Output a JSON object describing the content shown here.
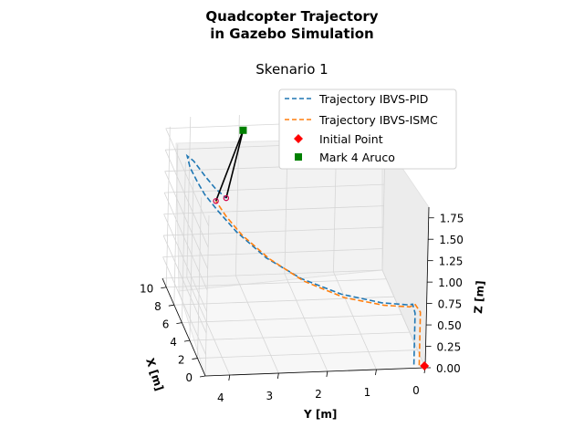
{
  "figure": {
    "title_line1": "Quadcopter Trajectory",
    "title_line2": "in Gazebo Simulation",
    "subtitle": "Skenario 1"
  },
  "chart_data": {
    "type": "line",
    "projection": "3d",
    "title": "Quadcopter Trajectory in Gazebo Simulation",
    "subtitle": "Skenario 1",
    "xlabel": "X [m]",
    "ylabel": "Y [m]",
    "zlabel": "Z [m]",
    "xlim": [
      0,
      11
    ],
    "ylim": [
      0,
      4.5
    ],
    "zlim": [
      0,
      1.875
    ],
    "x_ticks": [
      "0",
      "2",
      "4",
      "6",
      "8",
      "10"
    ],
    "y_ticks": [
      "0",
      "1",
      "2",
      "3",
      "4"
    ],
    "z_ticks": [
      "0.00",
      "0.25",
      "0.50",
      "0.75",
      "1.00",
      "1.25",
      "1.50",
      "1.75"
    ],
    "legend_position": "upper-right",
    "series": [
      {
        "name": "Trajectory IBVS-PID",
        "style": "dashed",
        "color": "#1f77b4",
        "points": [
          [
            0.4,
            0.2,
            0.0
          ],
          [
            0.4,
            0.2,
            0.6
          ],
          [
            0.45,
            0.25,
            0.7
          ],
          [
            0.6,
            0.35,
            0.68
          ],
          [
            1.5,
            0.8,
            0.62
          ],
          [
            3.0,
            1.5,
            0.58
          ],
          [
            4.5,
            2.2,
            0.62
          ],
          [
            6.0,
            2.8,
            0.72
          ],
          [
            7.5,
            3.3,
            0.88
          ],
          [
            8.6,
            3.6,
            1.02
          ],
          [
            9.5,
            3.8,
            1.12
          ],
          [
            10.2,
            3.9,
            1.2
          ],
          [
            10.8,
            4.0,
            1.3
          ],
          [
            11.0,
            4.05,
            1.42
          ],
          [
            10.6,
            3.95,
            1.4
          ],
          [
            9.9,
            3.75,
            1.28
          ],
          [
            9.4,
            3.6,
            1.2
          ],
          [
            9.0,
            3.4,
            1.12
          ]
        ]
      },
      {
        "name": "Trajectory IBVS-ISMC",
        "style": "dashed",
        "color": "#ff7f0e",
        "points": [
          [
            0.3,
            0.1,
            0.0
          ],
          [
            0.3,
            0.1,
            0.62
          ],
          [
            0.4,
            0.2,
            0.7
          ],
          [
            0.55,
            0.3,
            0.66
          ],
          [
            1.4,
            0.75,
            0.6
          ],
          [
            2.9,
            1.45,
            0.55
          ],
          [
            4.4,
            2.15,
            0.6
          ],
          [
            5.9,
            2.75,
            0.72
          ],
          [
            7.3,
            3.2,
            0.86
          ],
          [
            8.3,
            3.45,
            0.98
          ],
          [
            9.1,
            3.6,
            1.08
          ]
        ]
      }
    ],
    "markers": [
      {
        "name": "Initial Point",
        "color": "#ff0000",
        "shape": "diamond",
        "x": 0.2,
        "y": 0.0,
        "z": 0.0
      },
      {
        "name": "Mark 4 Aruco",
        "color": "#008000",
        "shape": "square",
        "x": 10.0,
        "y": 3.0,
        "z": 1.8
      }
    ]
  }
}
